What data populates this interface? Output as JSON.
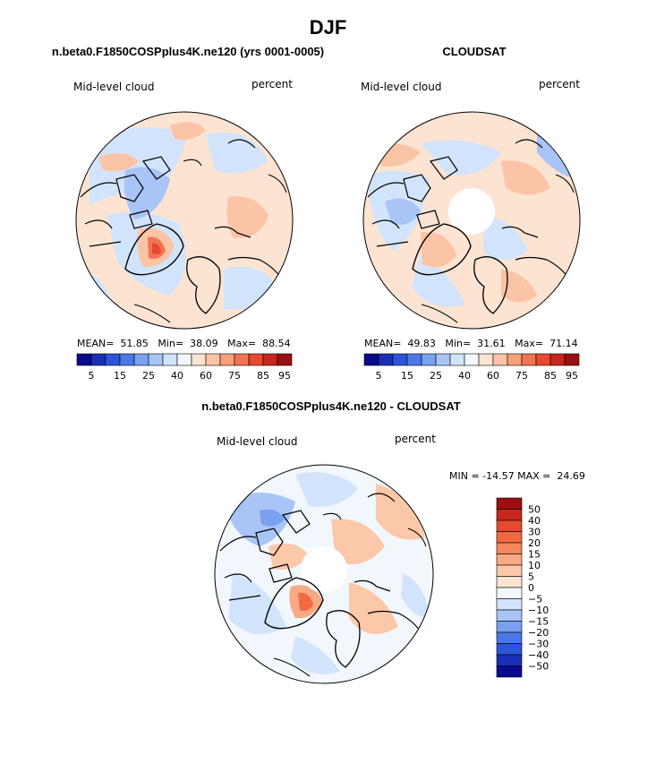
{
  "figure": {
    "title": "DJF"
  },
  "panels": [
    {
      "id": "model",
      "title": "n.beta0.F1850COSPplus4K.ne120 (yrs 0001-0005)",
      "left_label": "Mid-level cloud",
      "right_label": "percent",
      "stats": {
        "mean_label": "MEAN=",
        "mean": "51.85",
        "min_label": "Min=",
        "min": "38.09",
        "max_label": "Max=",
        "max": "88.54"
      },
      "colorbar": {
        "ticks": [
          "5",
          "15",
          "25",
          "40",
          "60",
          "75",
          "85",
          "95"
        ],
        "colors": [
          "#0a0a8c",
          "#1a2fb8",
          "#2a55d9",
          "#4a78e8",
          "#7aa0f0",
          "#a9c4f6",
          "#d2e4fb",
          "#f2f7fd",
          "#fde3d2",
          "#fbc4a6",
          "#f89e78",
          "#f37350",
          "#e6492f",
          "#c7261d",
          "#9a0f12"
        ]
      }
    },
    {
      "id": "obs",
      "title": "CLOUDSAT",
      "left_label": "Mid-level cloud",
      "right_label": "percent",
      "stats": {
        "mean_label": "MEAN=",
        "mean": "49.83",
        "min_label": "Min=",
        "min": "31.61",
        "max_label": "Max=",
        "max": "71.14"
      },
      "colorbar": {
        "ticks": [
          "5",
          "15",
          "25",
          "40",
          "60",
          "75",
          "85",
          "95"
        ],
        "colors": [
          "#0a0a8c",
          "#1a2fb8",
          "#2a55d9",
          "#4a78e8",
          "#7aa0f0",
          "#a9c4f6",
          "#d2e4fb",
          "#f2f7fd",
          "#fde3d2",
          "#fbc4a6",
          "#f89e78",
          "#f37350",
          "#e6492f",
          "#c7261d",
          "#9a0f12"
        ]
      }
    },
    {
      "id": "diff",
      "title": "n.beta0.F1850COSPplus4K.ne120 - CLOUDSAT",
      "left_label": "Mid-level cloud",
      "right_label": "percent",
      "stats_text": "MIN = -14.57 MAX =  24.69",
      "colorbar": {
        "ticks": [
          "50",
          "40",
          "30",
          "20",
          "15",
          "10",
          "5",
          "0",
          "−5",
          "−10",
          "−15",
          "−20",
          "−30",
          "−40",
          "−50"
        ],
        "colors": [
          "#9a0f12",
          "#c7261d",
          "#e6492f",
          "#f36a42",
          "#f7875d",
          "#f9a983",
          "#fbc8aa",
          "#fde3d2",
          "#f2f7fd",
          "#d2e4fb",
          "#a9c4f6",
          "#7aa0f0",
          "#4a78e8",
          "#2a55d9",
          "#1a2fb8",
          "#0a0a8c"
        ]
      }
    }
  ]
}
